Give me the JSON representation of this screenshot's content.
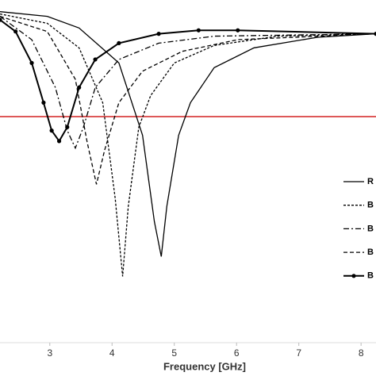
{
  "chart_data": {
    "type": "line",
    "x_label": "Frequency [GHz]",
    "xlim": [
      2.2,
      8.24
    ],
    "xticks": [
      3,
      4,
      5,
      6,
      7,
      8
    ],
    "ylim": [
      -30,
      0
    ],
    "threshold": -10,
    "threshold_color": "#d42020",
    "series": [
      {
        "name": "R",
        "color": "#000000",
        "x": [
          2.2,
          2.96,
          3.47,
          4.11,
          4.49,
          4.68,
          4.79,
          4.88,
          5.07,
          5.26,
          5.64,
          6.28,
          7.3,
          8.24
        ],
        "values": [
          -1.0,
          -1.4,
          -2.4,
          -5.4,
          -11.6,
          -19.0,
          -22.0,
          -17.7,
          -11.6,
          -8.8,
          -5.8,
          -4.1,
          -3.2,
          -2.9
        ]
      },
      {
        "name": "B",
        "color": "#000000",
        "x": [
          2.2,
          2.96,
          3.47,
          3.85,
          4.05,
          4.17,
          4.26,
          4.43,
          4.62,
          5.0,
          5.64,
          6.66,
          8.24
        ],
        "values": [
          -1.2,
          -2.0,
          -4.1,
          -8.8,
          -17.0,
          -23.7,
          -17.7,
          -10.9,
          -8.2,
          -5.4,
          -3.9,
          -3.1,
          -2.9
        ]
      },
      {
        "name": "B",
        "color": "#000000",
        "x": [
          2.2,
          2.71,
          3.09,
          3.28,
          3.41,
          3.54,
          3.73,
          4.11,
          4.75,
          5.64,
          8.24
        ],
        "values": [
          -1.4,
          -3.4,
          -7.5,
          -11.2,
          -12.7,
          -10.9,
          -7.5,
          -5.1,
          -3.7,
          -3.1,
          -2.9
        ]
      },
      {
        "name": "B",
        "color": "#000000",
        "x": [
          2.2,
          2.96,
          3.41,
          3.6,
          3.75,
          3.88,
          4.11,
          4.49,
          5.13,
          6.02,
          8.24
        ],
        "values": [
          -1.4,
          -2.7,
          -6.8,
          -12.2,
          -15.8,
          -12.9,
          -8.8,
          -6.1,
          -4.4,
          -3.4,
          -2.9
        ]
      },
      {
        "name": "B",
        "color": "#000000",
        "x": [
          2.2,
          2.45,
          2.71,
          2.9,
          3.03,
          3.15,
          3.28,
          3.47,
          3.73,
          4.11,
          4.75,
          5.39,
          6.02,
          8.24
        ],
        "values": [
          -1.7,
          -2.7,
          -5.4,
          -8.8,
          -11.2,
          -12.1,
          -10.9,
          -7.5,
          -5.1,
          -3.7,
          -2.9,
          -2.6,
          -2.6,
          -2.9
        ]
      }
    ]
  }
}
